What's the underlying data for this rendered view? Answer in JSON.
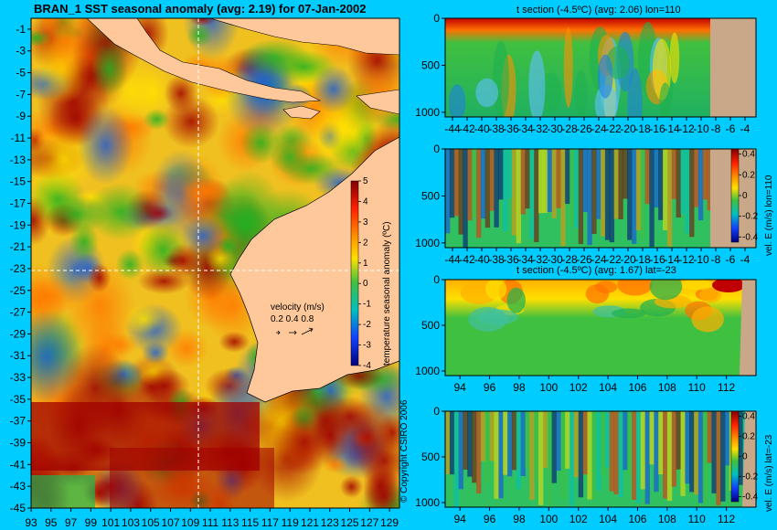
{
  "map": {
    "title": "BRAN_1 SST seasonal anomaly (avg: 2.19) for 07-Jan-2002",
    "lat_ticks": [
      "-1",
      "-3",
      "-5",
      "-7",
      "-9",
      "-11",
      "-13",
      "-15",
      "-17",
      "-19",
      "-21",
      "-23",
      "-25",
      "-27",
      "-29",
      "-31",
      "-33",
      "-35",
      "-37",
      "-39",
      "-41",
      "-43",
      "-45"
    ],
    "lon_ticks": [
      "93",
      "95",
      "97",
      "99",
      "101",
      "103",
      "105",
      "107",
      "109",
      "111",
      "113",
      "115",
      "117",
      "119",
      "121",
      "123",
      "125",
      "127",
      "129"
    ],
    "colorbar": {
      "label": "temperature seasonal anomaly (ºC)",
      "ticks": [
        "5",
        "4",
        "3",
        "2",
        "1",
        "0",
        "-1",
        "-2",
        "-3",
        "-4"
      ]
    },
    "velocity_legend": {
      "title": "velocity (m/s)",
      "scale": "0.2 0.4 0.8"
    },
    "copyright": "© Copyright CSIRO 2006"
  },
  "panels": [
    {
      "title": "t section (-4.5ºC) (avg: 2.06) lon=110",
      "y_ticks": [
        "0",
        "500",
        "1000"
      ],
      "x_ticks": [
        "-44",
        "-42",
        "-40",
        "-38",
        "-36",
        "-34",
        "-32",
        "-30",
        "-28",
        "-26",
        "-24",
        "-22",
        "-20",
        "-18",
        "-16",
        "-14",
        "-12",
        "-10",
        "-8",
        "-6",
        "-4"
      ]
    },
    {
      "title": "",
      "y_ticks": [
        "0",
        "500",
        "1000"
      ],
      "x_ticks": [
        "-44",
        "-42",
        "-40",
        "-38",
        "-36",
        "-34",
        "-32",
        "-30",
        "-28",
        "-26",
        "-24",
        "-22",
        "-20",
        "-18",
        "-16",
        "-14",
        "-12",
        "-10",
        "-8",
        "-6",
        "-4"
      ],
      "colorbar": {
        "label": "vel. E (m/s) lon=110",
        "ticks": [
          "0.4",
          "0.2",
          "0",
          "-0.2",
          "-0.4"
        ]
      }
    },
    {
      "title": "t section (-4.5ºC) (avg: 1.67) lat=-23",
      "y_ticks": [
        "0",
        "500",
        "1000"
      ],
      "x_ticks": [
        "94",
        "96",
        "98",
        "100",
        "102",
        "104",
        "106",
        "108",
        "110",
        "112"
      ]
    },
    {
      "title": "",
      "y_ticks": [
        "0",
        "500",
        "1000"
      ],
      "x_ticks": [
        "94",
        "96",
        "98",
        "100",
        "102",
        "104",
        "106",
        "108",
        "110",
        "112"
      ],
      "colorbar": {
        "label": "vel. E (m/s) lat=-23",
        "ticks": [
          "0.4",
          "0.2",
          "0",
          "-0.2",
          "-0.4"
        ]
      }
    }
  ],
  "chart_data": [
    {
      "type": "heatmap",
      "title": "BRAN_1 SST seasonal anomaly (avg: 2.19) for 07-Jan-2002",
      "x": [
        93,
        95,
        97,
        99,
        101,
        103,
        105,
        107,
        109,
        111,
        113,
        115,
        117,
        119,
        121,
        123,
        125,
        127,
        129
      ],
      "y": [
        -1,
        -3,
        -5,
        -7,
        -9,
        -11,
        -13,
        -15,
        -17,
        -19,
        -21,
        -23,
        -25,
        -27,
        -29,
        -31,
        -33,
        -35,
        -37,
        -39,
        -41,
        -43,
        -45
      ],
      "xlim": [
        93,
        130
      ],
      "ylim": [
        -45,
        0
      ],
      "color_range": [
        -4,
        5
      ],
      "colorbar_label": "temperature seasonal anomaly (ºC)",
      "average": 2.19,
      "section_lines": {
        "lon": 110,
        "lat": -23
      }
    },
    {
      "type": "heatmap",
      "title": "t section (-4.5ºC) (avg: 2.06) lon=110",
      "x": [
        -44,
        -42,
        -40,
        -38,
        -36,
        -34,
        -32,
        -30,
        -28,
        -26,
        -24,
        -22,
        -20,
        -18,
        -16,
        -14,
        -12,
        -10,
        -8,
        -6,
        -4
      ],
      "ylim": [
        1000,
        0
      ],
      "average": 2.06
    },
    {
      "type": "heatmap",
      "x": [
        -44,
        -42,
        -40,
        -38,
        -36,
        -34,
        -32,
        -30,
        -28,
        -26,
        -24,
        -22,
        -20,
        -18,
        -16,
        -14,
        -12,
        -10,
        -8,
        -6,
        -4
      ],
      "ylim": [
        1000,
        0
      ],
      "color_range": [
        -0.4,
        0.4
      ],
      "colorbar_label": "vel. E (m/s) lon=110"
    },
    {
      "type": "heatmap",
      "title": "t section (-4.5ºC) (avg: 1.67) lat=-23",
      "x": [
        94,
        96,
        98,
        100,
        102,
        104,
        106,
        108,
        110,
        112
      ],
      "ylim": [
        1000,
        0
      ],
      "average": 1.67
    },
    {
      "type": "heatmap",
      "x": [
        94,
        96,
        98,
        100,
        102,
        104,
        106,
        108,
        110,
        112
      ],
      "ylim": [
        1000,
        0
      ],
      "color_range": [
        -0.4,
        0.4
      ],
      "colorbar_label": "vel. E (m/s) lat=-23"
    }
  ]
}
